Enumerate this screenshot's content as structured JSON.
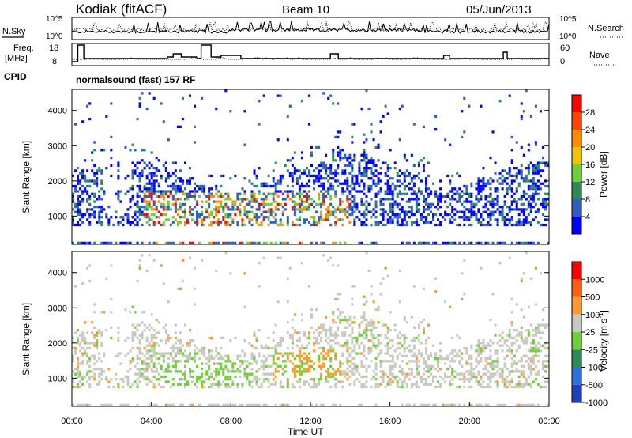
{
  "header": {
    "title": "Kodiak (fitACF)",
    "beam": "Beam 10",
    "date": "05/Jun/2013"
  },
  "sky_panel": {
    "left_label": "N.Sky",
    "right_label": "N.Search",
    "ticks": [
      "10^5",
      "10^0"
    ]
  },
  "freq_panel": {
    "left_label_1": "Freq.",
    "left_label_2": "[MHz]",
    "right_label": "Nave",
    "left_ticks": [
      "18",
      "8"
    ],
    "right_ticks": [
      "60",
      "0"
    ]
  },
  "cpid": {
    "label": "CPID",
    "text": "normalsound (fast) 157 RF"
  },
  "chart_data": [
    {
      "type": "heatmap",
      "ylabel": "Slant Range [km]",
      "ylim": [
        200,
        4600
      ],
      "y_ticks": [
        "4000",
        "3000",
        "2000",
        "1000"
      ],
      "xlim": [
        0,
        24
      ],
      "colorbar": {
        "label": "Power [dB]",
        "ticks": [
          "28",
          "24",
          "20",
          "16",
          "12",
          "8",
          "4"
        ],
        "colors": [
          "#0000ff",
          "#2f5fb8",
          "#2e8b57",
          "#6ecf3a",
          "#f4c300",
          "#ff8c00",
          "#ff4500",
          "#ff0000"
        ]
      }
    },
    {
      "type": "heatmap",
      "ylabel": "Slant Range [km]",
      "ylim": [
        200,
        4600
      ],
      "y_ticks": [
        "4000",
        "3000",
        "2000",
        "1000"
      ],
      "xlim": [
        0,
        24
      ],
      "xlabel": "Time UT",
      "x_ticks": [
        "00:00",
        "04:00",
        "08:00",
        "12:00",
        "16:00",
        "20:00",
        "00:00"
      ],
      "colorbar": {
        "label": "Velocity [m s",
        "label_sup": "-1",
        "label_end": "]",
        "ticks": [
          "1000",
          "500",
          "100",
          "25",
          "-25",
          "-100",
          "-500",
          "-1000"
        ],
        "colors": [
          "#1f3fbf",
          "#2f6fdf",
          "#2e8b57",
          "#6ecf3a",
          "#c8c8c0",
          "#ff9a30",
          "#ff6010",
          "#ff0000"
        ]
      }
    }
  ]
}
